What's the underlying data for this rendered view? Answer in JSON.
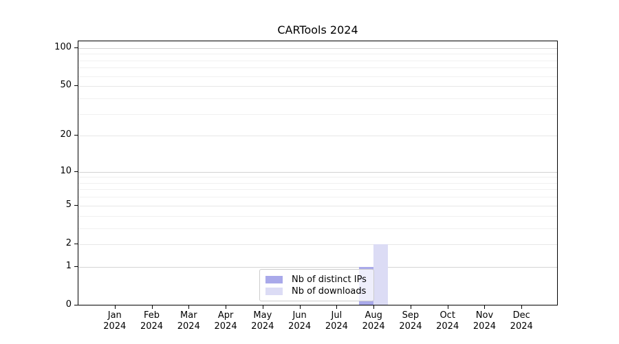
{
  "title": "CARTools 2024",
  "chart_data": {
    "type": "bar",
    "title": "CARTools 2024",
    "categories": [
      "Jan",
      "Feb",
      "Mar",
      "Apr",
      "May",
      "Jun",
      "Jul",
      "Aug",
      "Sep",
      "Oct",
      "Nov",
      "Dec"
    ],
    "year": "2024",
    "series": [
      {
        "name": "Nb of distinct IPs",
        "color": "#a9a9ea",
        "values": [
          0,
          0,
          0,
          0,
          0,
          0,
          0,
          1,
          0,
          0,
          0,
          0
        ]
      },
      {
        "name": "Nb of downloads",
        "color": "#dcdcf5",
        "values": [
          0,
          0,
          0,
          0,
          0,
          0,
          0,
          2,
          0,
          0,
          0,
          0
        ]
      }
    ],
    "y_axis": {
      "scale": "log1p",
      "ticks": [
        0,
        1,
        2,
        5,
        10,
        20,
        50,
        100
      ],
      "decade_ticks": [
        1,
        10,
        100
      ],
      "minor_ticks": [
        3,
        4,
        6,
        7,
        8,
        9,
        30,
        40,
        60,
        70,
        80,
        90
      ],
      "min": 0,
      "max": 100
    },
    "grid": true,
    "legend": {
      "position": "lower center",
      "entries": [
        "Nb of distinct IPs",
        "Nb of downloads"
      ]
    }
  }
}
